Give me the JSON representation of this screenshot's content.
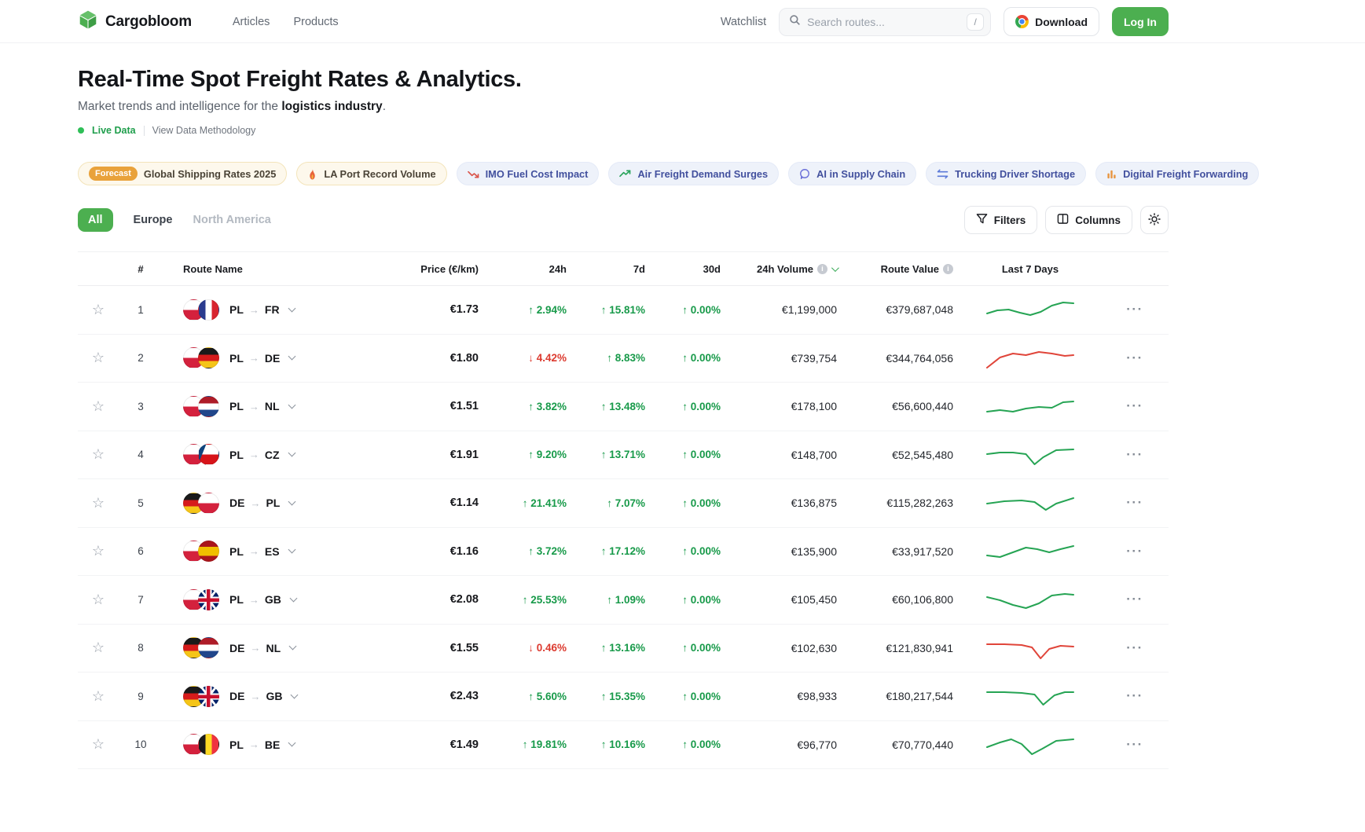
{
  "brand": {
    "name": "Cargobloom"
  },
  "nav": {
    "links": [
      {
        "label": "Articles"
      },
      {
        "label": "Products"
      }
    ],
    "watchlist": "Watchlist",
    "search_placeholder": "Search routes...",
    "search_shortcut": "/",
    "download_label": "Download",
    "login_label": "Log In"
  },
  "hero": {
    "title": "Real-Time Spot Freight Rates & Analytics.",
    "subtitle_prefix": "Market trends and intelligence for the ",
    "subtitle_bold": "logistics industry",
    "subtitle_suffix": ".",
    "live_label": "Live Data",
    "methodology_label": "View Data Methodology"
  },
  "chips": [
    {
      "icon": "forecast",
      "badge": "Forecast",
      "label": "Global Shipping Rates 2025",
      "style": "yellow"
    },
    {
      "icon": "flame-icon",
      "label": "LA Port Record Volume",
      "style": "yellow"
    },
    {
      "icon": "trend-down-icon",
      "label": "IMO Fuel Cost Impact",
      "style": "blue"
    },
    {
      "icon": "trend-up-icon",
      "label": "Air Freight Demand Surges",
      "style": "blue"
    },
    {
      "icon": "chat-icon",
      "label": "AI in Supply Chain",
      "style": "blue"
    },
    {
      "icon": "swap-icon",
      "label": "Trucking Driver Shortage",
      "style": "blue"
    },
    {
      "icon": "bar-chart-icon",
      "label": "Digital Freight Forwarding",
      "style": "blue"
    }
  ],
  "tabs": [
    {
      "label": "All",
      "state": "active"
    },
    {
      "label": "Europe",
      "state": "normal"
    },
    {
      "label": "North America",
      "state": "dim"
    }
  ],
  "toolbar": {
    "filters_label": "Filters",
    "columns_label": "Columns"
  },
  "table": {
    "headers": {
      "rank": "#",
      "route": "Route Name",
      "price": "Price (€/km)",
      "h24": "24h",
      "d7": "7d",
      "d30": "30d",
      "volume": "24h Volume",
      "value": "Route Value",
      "spark": "Last 7 Days"
    },
    "colors": {
      "up": "#189a4a",
      "down": "#dc3a2f",
      "spark_green": "#26a454",
      "spark_red": "#e0453a",
      "accent": "#4caf50"
    },
    "rows": [
      {
        "rank": "1",
        "from": "PL",
        "to": "FR",
        "price": "€1.73",
        "h24": {
          "text": "2.94%",
          "dir": "up"
        },
        "d7": {
          "text": "15.81%",
          "dir": "up"
        },
        "d30": {
          "text": "0.00%",
          "dir": "up"
        },
        "volume": "€1,199,000",
        "value": "€379,687,048",
        "spark": {
          "color": "green",
          "points": [
            [
              0,
              20
            ],
            [
              12,
              16
            ],
            [
              25,
              15
            ],
            [
              38,
              19
            ],
            [
              50,
              22
            ],
            [
              62,
              18
            ],
            [
              75,
              10
            ],
            [
              88,
              6
            ],
            [
              100,
              7
            ]
          ]
        }
      },
      {
        "rank": "2",
        "from": "PL",
        "to": "DE",
        "price": "€1.80",
        "h24": {
          "text": "4.42%",
          "dir": "down"
        },
        "d7": {
          "text": "8.83%",
          "dir": "up"
        },
        "d30": {
          "text": "0.00%",
          "dir": "up"
        },
        "volume": "€739,754",
        "value": "€344,764,056",
        "spark": {
          "color": "red",
          "points": [
            [
              0,
              27
            ],
            [
              15,
              14
            ],
            [
              30,
              9
            ],
            [
              45,
              11
            ],
            [
              60,
              7
            ],
            [
              75,
              9
            ],
            [
              90,
              12
            ],
            [
              100,
              11
            ]
          ]
        }
      },
      {
        "rank": "3",
        "from": "PL",
        "to": "NL",
        "price": "€1.51",
        "h24": {
          "text": "3.82%",
          "dir": "up"
        },
        "d7": {
          "text": "13.48%",
          "dir": "up"
        },
        "d30": {
          "text": "0.00%",
          "dir": "up"
        },
        "volume": "€178,100",
        "value": "€56,600,440",
        "spark": {
          "color": "green",
          "points": [
            [
              0,
              22
            ],
            [
              15,
              20
            ],
            [
              30,
              22
            ],
            [
              45,
              18
            ],
            [
              60,
              16
            ],
            [
              75,
              17
            ],
            [
              88,
              10
            ],
            [
              100,
              9
            ]
          ]
        }
      },
      {
        "rank": "4",
        "from": "PL",
        "to": "CZ",
        "price": "€1.91",
        "h24": {
          "text": "9.20%",
          "dir": "up"
        },
        "d7": {
          "text": "13.71%",
          "dir": "up"
        },
        "d30": {
          "text": "0.00%",
          "dir": "up"
        },
        "volume": "€148,700",
        "value": "€52,545,480",
        "spark": {
          "color": "green",
          "points": [
            [
              0,
              14
            ],
            [
              15,
              12
            ],
            [
              30,
              12
            ],
            [
              45,
              14
            ],
            [
              55,
              27
            ],
            [
              65,
              18
            ],
            [
              80,
              9
            ],
            [
              100,
              8
            ]
          ]
        }
      },
      {
        "rank": "5",
        "from": "DE",
        "to": "PL",
        "price": "€1.14",
        "h24": {
          "text": "21.41%",
          "dir": "up"
        },
        "d7": {
          "text": "7.07%",
          "dir": "up"
        },
        "d30": {
          "text": "0.00%",
          "dir": "up"
        },
        "volume": "€136,875",
        "value": "€115,282,263",
        "spark": {
          "color": "green",
          "points": [
            [
              0,
              16
            ],
            [
              20,
              13
            ],
            [
              40,
              12
            ],
            [
              55,
              14
            ],
            [
              68,
              24
            ],
            [
              80,
              16
            ],
            [
              100,
              9
            ]
          ]
        }
      },
      {
        "rank": "6",
        "from": "PL",
        "to": "ES",
        "price": "€1.16",
        "h24": {
          "text": "3.72%",
          "dir": "up"
        },
        "d7": {
          "text": "17.12%",
          "dir": "up"
        },
        "d30": {
          "text": "0.00%",
          "dir": "up"
        },
        "volume": "€135,900",
        "value": "€33,917,520",
        "spark": {
          "color": "green",
          "points": [
            [
              0,
              20
            ],
            [
              15,
              22
            ],
            [
              30,
              16
            ],
            [
              45,
              10
            ],
            [
              58,
              12
            ],
            [
              72,
              16
            ],
            [
              85,
              12
            ],
            [
              100,
              8
            ]
          ]
        }
      },
      {
        "rank": "7",
        "from": "PL",
        "to": "GB",
        "price": "€2.08",
        "h24": {
          "text": "25.53%",
          "dir": "up"
        },
        "d7": {
          "text": "1.09%",
          "dir": "up"
        },
        "d30": {
          "text": "0.00%",
          "dir": "up"
        },
        "volume": "€105,450",
        "value": "€60,106,800",
        "spark": {
          "color": "green",
          "points": [
            [
              0,
              12
            ],
            [
              15,
              16
            ],
            [
              30,
              22
            ],
            [
              45,
              26
            ],
            [
              60,
              20
            ],
            [
              75,
              10
            ],
            [
              90,
              8
            ],
            [
              100,
              9
            ]
          ]
        }
      },
      {
        "rank": "8",
        "from": "DE",
        "to": "NL",
        "price": "€1.55",
        "h24": {
          "text": "0.46%",
          "dir": "down"
        },
        "d7": {
          "text": "13.16%",
          "dir": "up"
        },
        "d30": {
          "text": "0.00%",
          "dir": "up"
        },
        "volume": "€102,630",
        "value": "€121,830,941",
        "spark": {
          "color": "red",
          "points": [
            [
              0,
              10
            ],
            [
              20,
              10
            ],
            [
              40,
              11
            ],
            [
              52,
              14
            ],
            [
              62,
              28
            ],
            [
              72,
              16
            ],
            [
              85,
              12
            ],
            [
              100,
              13
            ]
          ]
        }
      },
      {
        "rank": "9",
        "from": "DE",
        "to": "GB",
        "price": "€2.43",
        "h24": {
          "text": "5.60%",
          "dir": "up"
        },
        "d7": {
          "text": "15.35%",
          "dir": "up"
        },
        "d30": {
          "text": "0.00%",
          "dir": "up"
        },
        "volume": "€98,933",
        "value": "€180,217,544",
        "spark": {
          "color": "green",
          "points": [
            [
              0,
              10
            ],
            [
              20,
              10
            ],
            [
              40,
              11
            ],
            [
              55,
              13
            ],
            [
              65,
              26
            ],
            [
              78,
              14
            ],
            [
              90,
              10
            ],
            [
              100,
              10
            ]
          ]
        }
      },
      {
        "rank": "10",
        "from": "PL",
        "to": "BE",
        "price": "€1.49",
        "h24": {
          "text": "19.81%",
          "dir": "up"
        },
        "d7": {
          "text": "10.16%",
          "dir": "up"
        },
        "d30": {
          "text": "0.00%",
          "dir": "up"
        },
        "volume": "€96,770",
        "value": "€70,770,440",
        "spark": {
          "color": "green",
          "points": [
            [
              0,
              18
            ],
            [
              15,
              12
            ],
            [
              28,
              8
            ],
            [
              40,
              14
            ],
            [
              52,
              27
            ],
            [
              64,
              20
            ],
            [
              80,
              10
            ],
            [
              100,
              8
            ]
          ]
        }
      }
    ]
  }
}
